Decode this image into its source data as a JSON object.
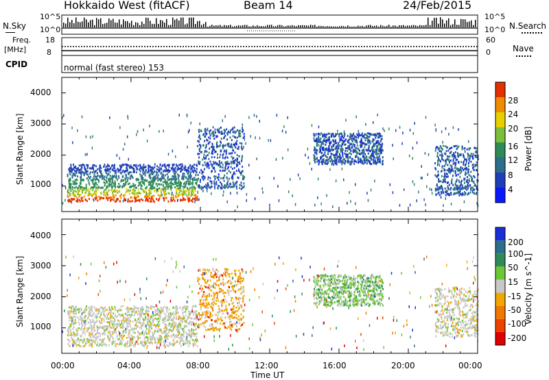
{
  "header": {
    "station": "Hokkaido West (fitACF)",
    "beam": "Beam 14",
    "date": "24/Feb/2015"
  },
  "status": {
    "nsky_label": "N.Sky",
    "nsearch_label": "N.Search",
    "freq_label": "Freq.",
    "freq_unit": "[MHz]",
    "nave_label": "Nave",
    "cpid_label": "CPID",
    "left_ticks_top": [
      "10^5",
      "10^0"
    ],
    "right_ticks_top": [
      "10^5",
      "10^0"
    ],
    "freq_ticks": [
      "18",
      "8"
    ],
    "nave_ticks": [
      "60",
      "0"
    ],
    "cpid_text": "normal (fast stereo) 153"
  },
  "chart_data": [
    {
      "type": "heatmap",
      "title": "",
      "xlabel": "",
      "ylabel": "Slant Range [km]",
      "xlim_hours": [
        0,
        24
      ],
      "ylim": [
        180,
        4500
      ],
      "yticks": [
        1000,
        2000,
        3000,
        4000
      ],
      "colorbar": {
        "label": "Power [dB]",
        "ticks": [
          4,
          8,
          12,
          16,
          20,
          24,
          28
        ],
        "colors": [
          "#0a1aff",
          "#1f3fb8",
          "#2c6e8c",
          "#2e8b57",
          "#7cbf3a",
          "#e8d000",
          "#f08c00",
          "#e23000"
        ]
      },
      "regions": [
        {
          "t0": 0.3,
          "t1": 7.8,
          "r0": 500,
          "r1": 1700,
          "level": "mixed"
        },
        {
          "t0": 7.8,
          "t1": 10.5,
          "r0": 900,
          "r1": 2900,
          "level": "low"
        },
        {
          "t0": 14.5,
          "t1": 18.5,
          "r0": 1700,
          "r1": 2700,
          "level": "low"
        },
        {
          "t0": 21.5,
          "t1": 24,
          "r0": 700,
          "r1": 2300,
          "level": "low"
        }
      ]
    },
    {
      "type": "heatmap",
      "title": "",
      "xlabel": "Time UT",
      "ylabel": "Slant Range [km]",
      "xlim_hours": [
        0,
        24
      ],
      "ylim": [
        180,
        4500
      ],
      "yticks": [
        1000,
        2000,
        3000,
        4000
      ],
      "xticks": [
        "00:00",
        "04:00",
        "08:00",
        "12:00",
        "16:00",
        "20:00",
        "00:00"
      ],
      "colorbar": {
        "label": "Velocity [m s^-1]",
        "ticks": [
          200,
          100,
          50,
          15,
          -15,
          -50,
          -100,
          -200
        ],
        "colors": [
          "#1a2fd8",
          "#2c6e8c",
          "#2e8b57",
          "#6cc837",
          "#c8c8c8",
          "#f0a800",
          "#f07800",
          "#f04000",
          "#e00000"
        ]
      },
      "regions": [
        {
          "t0": 0.3,
          "t1": 7.8,
          "r0": 400,
          "r1": 1700,
          "level": "grey"
        },
        {
          "t0": 7.8,
          "t1": 10.5,
          "r0": 900,
          "r1": 2900,
          "level": "orange"
        },
        {
          "t0": 14.5,
          "t1": 18.5,
          "r0": 1700,
          "r1": 2700,
          "level": "green"
        },
        {
          "t0": 21.5,
          "t1": 24,
          "r0": 700,
          "r1": 2300,
          "level": "grey"
        }
      ]
    }
  ]
}
